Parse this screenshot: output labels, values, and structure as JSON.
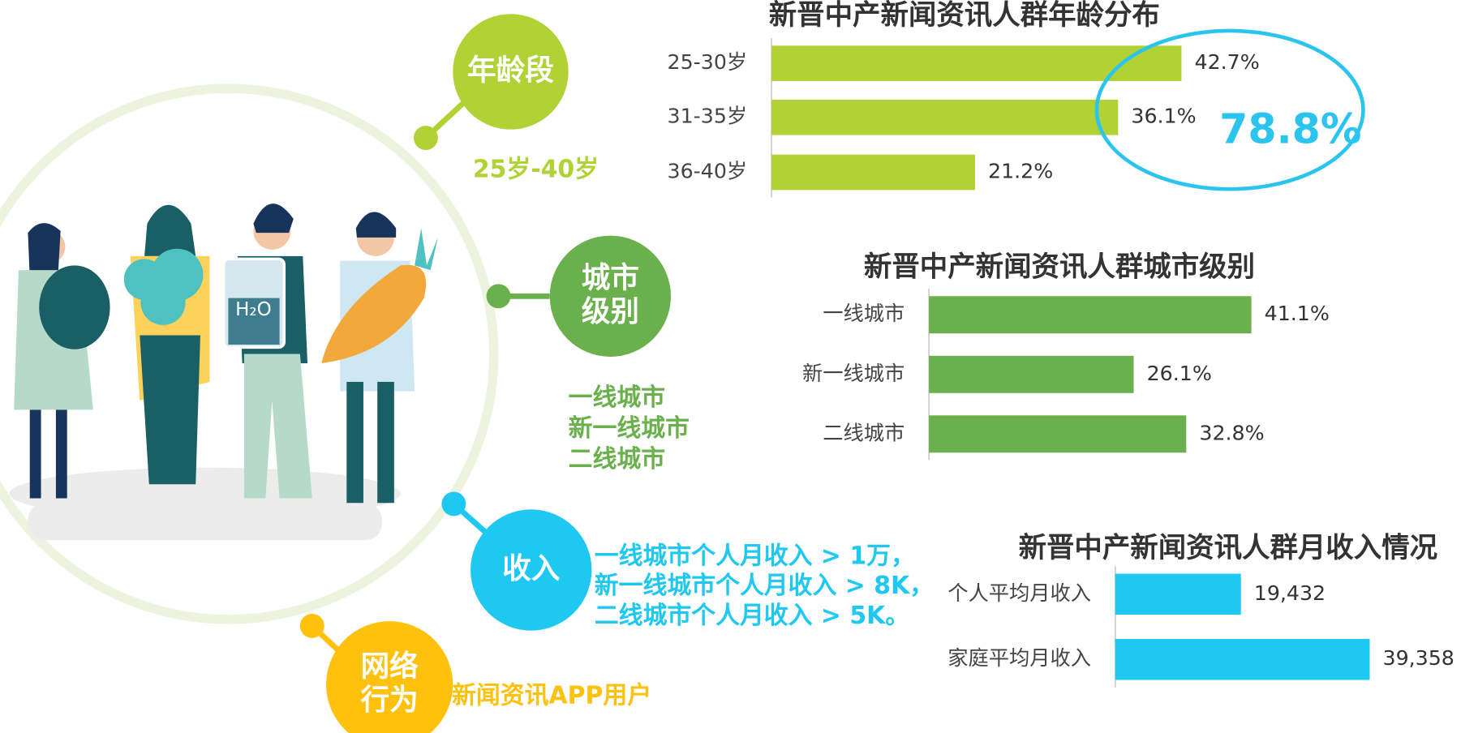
{
  "chart_data": [
    {
      "type": "bar",
      "orientation": "horizontal",
      "title": "新晋中产新闻资讯人群年龄分布",
      "categories": [
        "25-30岁",
        "31-35岁",
        "36-40岁"
      ],
      "values": [
        42.7,
        36.1,
        21.2
      ],
      "value_labels": [
        "42.7%",
        "36.1%",
        "21.2%"
      ],
      "color": "#b0d235",
      "annotation": "78.8%"
    },
    {
      "type": "bar",
      "orientation": "horizontal",
      "title": "新晋中产新闻资讯人群城市级别",
      "categories": [
        "一线城市",
        "新一线城市",
        "二线城市"
      ],
      "values": [
        41.1,
        26.1,
        32.8
      ],
      "value_labels": [
        "41.1%",
        "26.1%",
        "32.8%"
      ],
      "color": "#6ab04c"
    },
    {
      "type": "bar",
      "orientation": "horizontal",
      "title": "新晋中产新闻资讯人群月收入情况",
      "categories": [
        "个人平均月收入",
        "家庭平均月收入"
      ],
      "values": [
        19432,
        39358
      ],
      "value_labels": [
        "19,432",
        "39,358"
      ],
      "color": "#1ec8f0"
    }
  ],
  "sections": [
    {
      "label": [
        "年龄段"
      ],
      "text": [
        "25岁-40岁"
      ]
    },
    {
      "label": [
        "城市",
        "级别"
      ],
      "text": [
        "一线城市",
        "新一线城市",
        "二线城市"
      ]
    },
    {
      "label": [
        "收入"
      ],
      "text": [
        "一线城市个人月收入 > 1万，",
        "新一线城市个人月收入 > 8K，",
        "二线城市个人月收入 > 5K。"
      ]
    },
    {
      "label": [
        "网络",
        "行为"
      ],
      "text": [
        "新闻资讯APP用户"
      ]
    }
  ]
}
